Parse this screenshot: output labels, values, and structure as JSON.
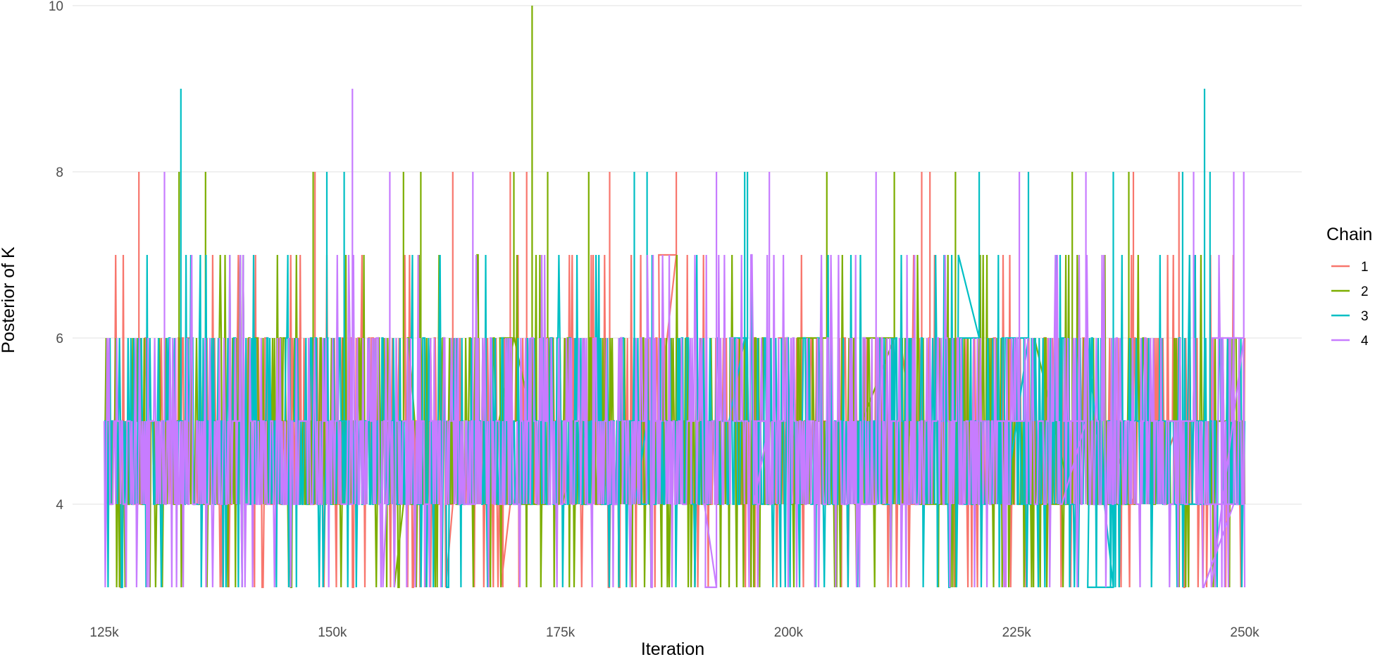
{
  "chart_data": {
    "type": "line",
    "title": "",
    "xlabel": "Iteration",
    "ylabel": "Posterior of K",
    "xlim": [
      125000,
      250000
    ],
    "ylim": [
      3,
      10
    ],
    "x_ticks": [
      125000,
      150000,
      175000,
      200000,
      225000,
      250000
    ],
    "x_tick_labels": [
      "125k",
      "150k",
      "175k",
      "200k",
      "225k",
      "250k"
    ],
    "y_ticks": [
      4,
      6,
      8,
      10
    ],
    "y_tick_labels": [
      "4",
      "6",
      "8",
      "10"
    ],
    "grid": true,
    "legend": {
      "title": "Chain",
      "position": "right"
    },
    "series": [
      {
        "name": "1",
        "color": "#F8766D",
        "min": 3,
        "max": 8,
        "mode": 5,
        "spikes": [
          [
            128800,
            8
          ],
          [
            148100,
            8
          ],
          [
            163200,
            8
          ],
          [
            169500,
            8
          ],
          [
            171300,
            8
          ],
          [
            180400,
            8
          ],
          [
            187700,
            8
          ],
          [
            214600,
            8
          ],
          [
            215500,
            8
          ],
          [
            237800,
            8
          ],
          [
            242800,
            8
          ]
        ]
      },
      {
        "name": "2",
        "color": "#7CAE00",
        "min": 3,
        "max": 10,
        "mode": 5,
        "spikes": [
          [
            133200,
            8
          ],
          [
            136100,
            8
          ],
          [
            147900,
            8
          ],
          [
            157800,
            8
          ],
          [
            159700,
            8
          ],
          [
            169900,
            8
          ],
          [
            171900,
            10
          ],
          [
            171900,
            9
          ],
          [
            173600,
            8
          ],
          [
            178100,
            8
          ],
          [
            204200,
            8
          ],
          [
            211600,
            8
          ],
          [
            218300,
            8
          ],
          [
            231100,
            8
          ],
          [
            237300,
            8
          ]
        ]
      },
      {
        "name": "3",
        "color": "#00BFC4",
        "min": 3,
        "max": 9,
        "mode": 5,
        "spikes": [
          [
            133400,
            9
          ],
          [
            149400,
            8
          ],
          [
            151300,
            8
          ],
          [
            183100,
            8
          ],
          [
            184500,
            8
          ],
          [
            195200,
            8
          ],
          [
            195500,
            8
          ],
          [
            220900,
            8
          ],
          [
            226300,
            8
          ],
          [
            235600,
            8
          ],
          [
            243200,
            8
          ],
          [
            245600,
            9
          ],
          [
            246200,
            8
          ]
        ]
      },
      {
        "name": "4",
        "color": "#C77CFF",
        "min": 3,
        "max": 9,
        "mode": 5,
        "spikes": [
          [
            131600,
            8
          ],
          [
            152200,
            9
          ],
          [
            156300,
            8
          ],
          [
            165400,
            8
          ],
          [
            192100,
            8
          ],
          [
            197900,
            8
          ],
          [
            209600,
            8
          ],
          [
            225300,
            8
          ],
          [
            232600,
            8
          ],
          [
            244400,
            8
          ],
          [
            248800,
            8
          ],
          [
            249900,
            8
          ]
        ]
      }
    ]
  }
}
